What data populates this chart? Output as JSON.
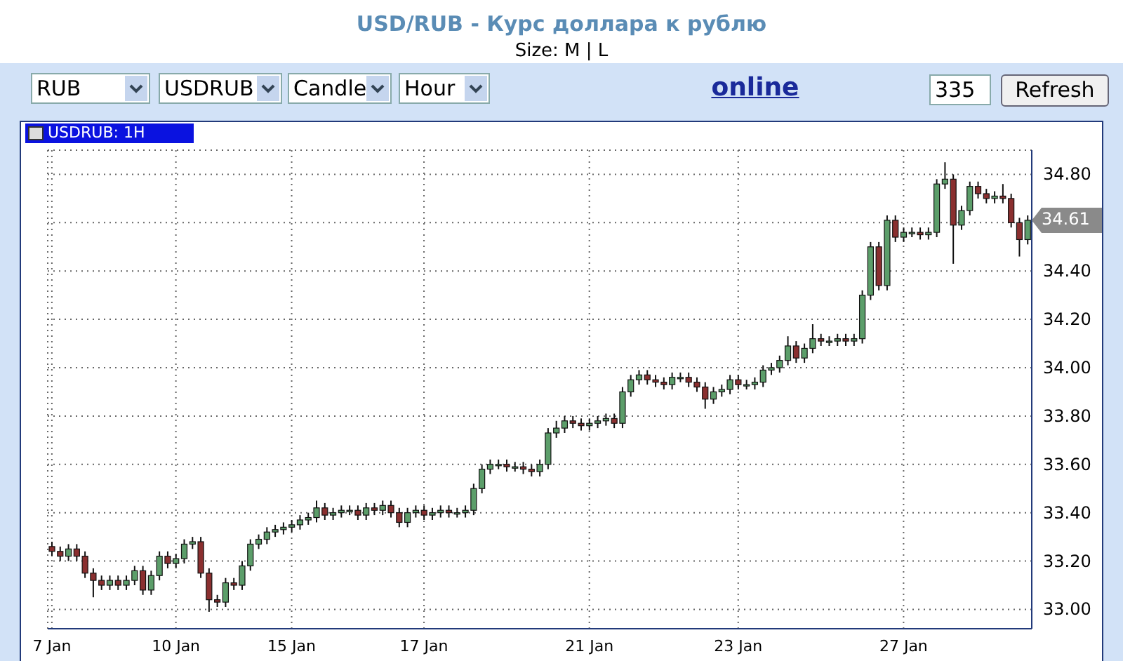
{
  "chart_data": {
    "type": "candlestick",
    "title": "USD/RUB - Курс доллара к рублю",
    "categories": [
      "7 Jan",
      null,
      null,
      null,
      null,
      null,
      null,
      null,
      null,
      null,
      null,
      null,
      null,
      null,
      null,
      "10 Jan",
      null,
      null,
      null,
      null,
      null,
      null,
      null,
      null,
      null,
      null,
      null,
      null,
      null,
      "15 Jan",
      null,
      null,
      null,
      null,
      null,
      null,
      null,
      null,
      null,
      null,
      null,
      null,
      null,
      null,
      null,
      "17 Jan",
      null,
      null,
      null,
      null,
      null,
      null,
      null,
      null,
      null,
      null,
      null,
      null,
      null,
      null,
      null,
      null,
      null,
      null,
      null,
      "21 Jan",
      null,
      null,
      null,
      null,
      null,
      null,
      null,
      null,
      null,
      null,
      null,
      null,
      null,
      null,
      null,
      null,
      null,
      "23 Jan",
      null,
      null,
      null,
      null,
      null,
      null,
      null,
      null,
      null,
      null,
      null,
      null,
      null,
      null,
      null,
      null,
      null,
      null,
      null,
      "27 Jan",
      null,
      null,
      null,
      null,
      null,
      null,
      null,
      null,
      null,
      null,
      null,
      null,
      null,
      null,
      null
    ],
    "ohlc": [
      [
        33.26,
        33.28,
        33.22,
        33.24
      ],
      [
        33.24,
        33.26,
        33.2,
        33.22
      ],
      [
        33.22,
        33.27,
        33.2,
        33.25
      ],
      [
        33.25,
        33.27,
        33.2,
        33.22
      ],
      [
        33.22,
        33.24,
        33.13,
        33.15
      ],
      [
        33.15,
        33.17,
        33.05,
        33.12
      ],
      [
        33.12,
        33.14,
        33.08,
        33.1
      ],
      [
        33.1,
        33.14,
        33.08,
        33.12
      ],
      [
        33.12,
        33.14,
        33.08,
        33.1
      ],
      [
        33.1,
        33.14,
        33.08,
        33.12
      ],
      [
        33.12,
        33.18,
        33.1,
        33.16
      ],
      [
        33.16,
        33.18,
        33.06,
        33.08
      ],
      [
        33.08,
        33.16,
        33.06,
        33.14
      ],
      [
        33.14,
        33.24,
        33.12,
        33.22
      ],
      [
        33.22,
        33.24,
        33.17,
        33.19
      ],
      [
        33.19,
        33.23,
        33.17,
        33.21
      ],
      [
        33.21,
        33.29,
        33.19,
        33.27
      ],
      [
        33.27,
        33.3,
        33.25,
        33.28
      ],
      [
        33.28,
        33.3,
        33.13,
        33.15
      ],
      [
        33.15,
        33.17,
        32.99,
        33.04
      ],
      [
        33.04,
        33.06,
        33.01,
        33.03
      ],
      [
        33.03,
        33.13,
        33.01,
        33.11
      ],
      [
        33.11,
        33.13,
        33.08,
        33.1
      ],
      [
        33.1,
        33.2,
        33.08,
        33.18
      ],
      [
        33.18,
        33.29,
        33.16,
        33.27
      ],
      [
        33.27,
        33.31,
        33.25,
        33.29
      ],
      [
        33.29,
        33.34,
        33.27,
        33.32
      ],
      [
        33.32,
        33.35,
        33.3,
        33.33
      ],
      [
        33.33,
        33.36,
        33.31,
        33.34
      ],
      [
        33.34,
        33.37,
        33.32,
        33.35
      ],
      [
        33.35,
        33.39,
        33.33,
        33.37
      ],
      [
        33.37,
        33.4,
        33.35,
        33.38
      ],
      [
        33.38,
        33.45,
        33.36,
        33.42
      ],
      [
        33.42,
        33.44,
        33.37,
        33.39
      ],
      [
        33.39,
        33.42,
        33.37,
        33.4
      ],
      [
        33.4,
        33.43,
        33.38,
        33.41
      ],
      [
        33.41,
        33.43,
        33.39,
        33.41
      ],
      [
        33.41,
        33.43,
        33.37,
        33.39
      ],
      [
        33.39,
        33.44,
        33.37,
        33.42
      ],
      [
        33.42,
        33.44,
        33.39,
        33.41
      ],
      [
        33.41,
        33.45,
        33.39,
        33.43
      ],
      [
        33.43,
        33.45,
        33.38,
        33.4
      ],
      [
        33.4,
        33.42,
        33.34,
        33.36
      ],
      [
        33.36,
        33.42,
        33.34,
        33.4
      ],
      [
        33.4,
        33.43,
        33.38,
        33.41
      ],
      [
        33.41,
        33.43,
        33.37,
        33.39
      ],
      [
        33.39,
        33.42,
        33.37,
        33.4
      ],
      [
        33.4,
        33.43,
        33.38,
        33.41
      ],
      [
        33.41,
        33.43,
        33.38,
        33.4
      ],
      [
        33.4,
        33.42,
        33.38,
        33.4
      ],
      [
        33.4,
        33.43,
        33.38,
        33.41
      ],
      [
        33.41,
        33.52,
        33.39,
        33.5
      ],
      [
        33.5,
        33.6,
        33.48,
        33.58
      ],
      [
        33.58,
        33.62,
        33.56,
        33.6
      ],
      [
        33.6,
        33.62,
        33.58,
        33.6
      ],
      [
        33.6,
        33.62,
        33.57,
        33.59
      ],
      [
        33.59,
        33.61,
        33.57,
        33.59
      ],
      [
        33.59,
        33.61,
        33.56,
        33.58
      ],
      [
        33.58,
        33.6,
        33.55,
        33.57
      ],
      [
        33.57,
        33.62,
        33.55,
        33.6
      ],
      [
        33.6,
        33.75,
        33.58,
        33.73
      ],
      [
        33.73,
        33.78,
        33.71,
        33.75
      ],
      [
        33.75,
        33.8,
        33.73,
        33.78
      ],
      [
        33.78,
        33.8,
        33.75,
        33.77
      ],
      [
        33.77,
        33.79,
        33.74,
        33.76
      ],
      [
        33.76,
        33.79,
        33.74,
        33.77
      ],
      [
        33.77,
        33.8,
        33.75,
        33.78
      ],
      [
        33.78,
        33.81,
        33.76,
        33.79
      ],
      [
        33.79,
        33.81,
        33.75,
        33.77
      ],
      [
        33.77,
        33.92,
        33.75,
        33.9
      ],
      [
        33.9,
        33.97,
        33.88,
        33.95
      ],
      [
        33.95,
        33.99,
        33.93,
        33.97
      ],
      [
        33.97,
        33.99,
        33.93,
        33.95
      ],
      [
        33.95,
        33.97,
        33.92,
        33.94
      ],
      [
        33.94,
        33.96,
        33.91,
        33.93
      ],
      [
        33.93,
        33.98,
        33.91,
        33.96
      ],
      [
        33.96,
        33.98,
        33.94,
        33.96
      ],
      [
        33.96,
        33.98,
        33.92,
        33.94
      ],
      [
        33.94,
        33.96,
        33.9,
        33.92
      ],
      [
        33.92,
        33.94,
        33.83,
        33.87
      ],
      [
        33.87,
        33.92,
        33.85,
        33.9
      ],
      [
        33.9,
        33.93,
        33.88,
        33.91
      ],
      [
        33.91,
        33.97,
        33.89,
        33.95
      ],
      [
        33.95,
        33.97,
        33.91,
        33.93
      ],
      [
        33.93,
        33.95,
        33.91,
        33.93
      ],
      [
        33.93,
        33.96,
        33.91,
        33.94
      ],
      [
        33.94,
        34.01,
        33.92,
        33.99
      ],
      [
        33.99,
        34.02,
        33.97,
        34.0
      ],
      [
        34.0,
        34.05,
        33.98,
        34.03
      ],
      [
        34.03,
        34.13,
        34.01,
        34.09
      ],
      [
        34.09,
        34.11,
        34.02,
        34.04
      ],
      [
        34.04,
        34.1,
        34.02,
        34.08
      ],
      [
        34.08,
        34.18,
        34.06,
        34.12
      ],
      [
        34.12,
        34.14,
        34.09,
        34.11
      ],
      [
        34.11,
        34.13,
        34.09,
        34.11
      ],
      [
        34.11,
        34.14,
        34.09,
        34.12
      ],
      [
        34.12,
        34.14,
        34.09,
        34.11
      ],
      [
        34.11,
        34.14,
        34.09,
        34.12
      ],
      [
        34.12,
        34.32,
        34.1,
        34.3
      ],
      [
        34.3,
        34.52,
        34.28,
        34.5
      ],
      [
        34.5,
        34.52,
        34.32,
        34.34
      ],
      [
        34.34,
        34.63,
        34.32,
        34.61
      ],
      [
        34.61,
        34.63,
        34.52,
        34.54
      ],
      [
        34.54,
        34.58,
        34.52,
        34.56
      ],
      [
        34.56,
        34.58,
        34.54,
        34.56
      ],
      [
        34.56,
        34.58,
        34.53,
        34.55
      ],
      [
        34.55,
        34.58,
        34.53,
        34.56
      ],
      [
        34.56,
        34.78,
        34.54,
        34.76
      ],
      [
        34.76,
        34.85,
        34.74,
        34.78
      ],
      [
        34.78,
        34.8,
        34.43,
        34.59
      ],
      [
        34.59,
        34.67,
        34.57,
        34.65
      ],
      [
        34.65,
        34.77,
        34.63,
        34.75
      ],
      [
        34.75,
        34.77,
        34.7,
        34.72
      ],
      [
        34.72,
        34.74,
        34.68,
        34.7
      ],
      [
        34.7,
        34.73,
        34.68,
        34.71
      ],
      [
        34.71,
        34.76,
        34.68,
        34.7
      ],
      [
        34.7,
        34.72,
        34.58,
        34.6
      ],
      [
        34.6,
        34.62,
        34.46,
        34.53
      ],
      [
        34.53,
        34.63,
        34.51,
        34.61
      ]
    ],
    "ylim": [
      32.92,
      34.9
    ],
    "yticks": [
      {
        "value": 33,
        "label": "33.00"
      },
      {
        "value": 33.2,
        "label": "33.20"
      },
      {
        "value": 33.4,
        "label": "33.40"
      },
      {
        "value": 33.6,
        "label": "33.60"
      },
      {
        "value": 33.8,
        "label": "33.80"
      },
      {
        "value": 34,
        "label": "34.00"
      },
      {
        "value": 34.2,
        "label": "34.20"
      },
      {
        "value": 34.4,
        "label": "34.40"
      },
      {
        "value": 34.6,
        "label": null
      },
      {
        "value": 34.8,
        "label": "34.80"
      }
    ],
    "grid": true,
    "annotations": [
      "Size: M | L",
      "RUB",
      "USDRUB",
      "Candle",
      "Hour",
      "online",
      "335",
      "Refresh",
      "USDRUB: 1H",
      "34.61"
    ]
  }
}
